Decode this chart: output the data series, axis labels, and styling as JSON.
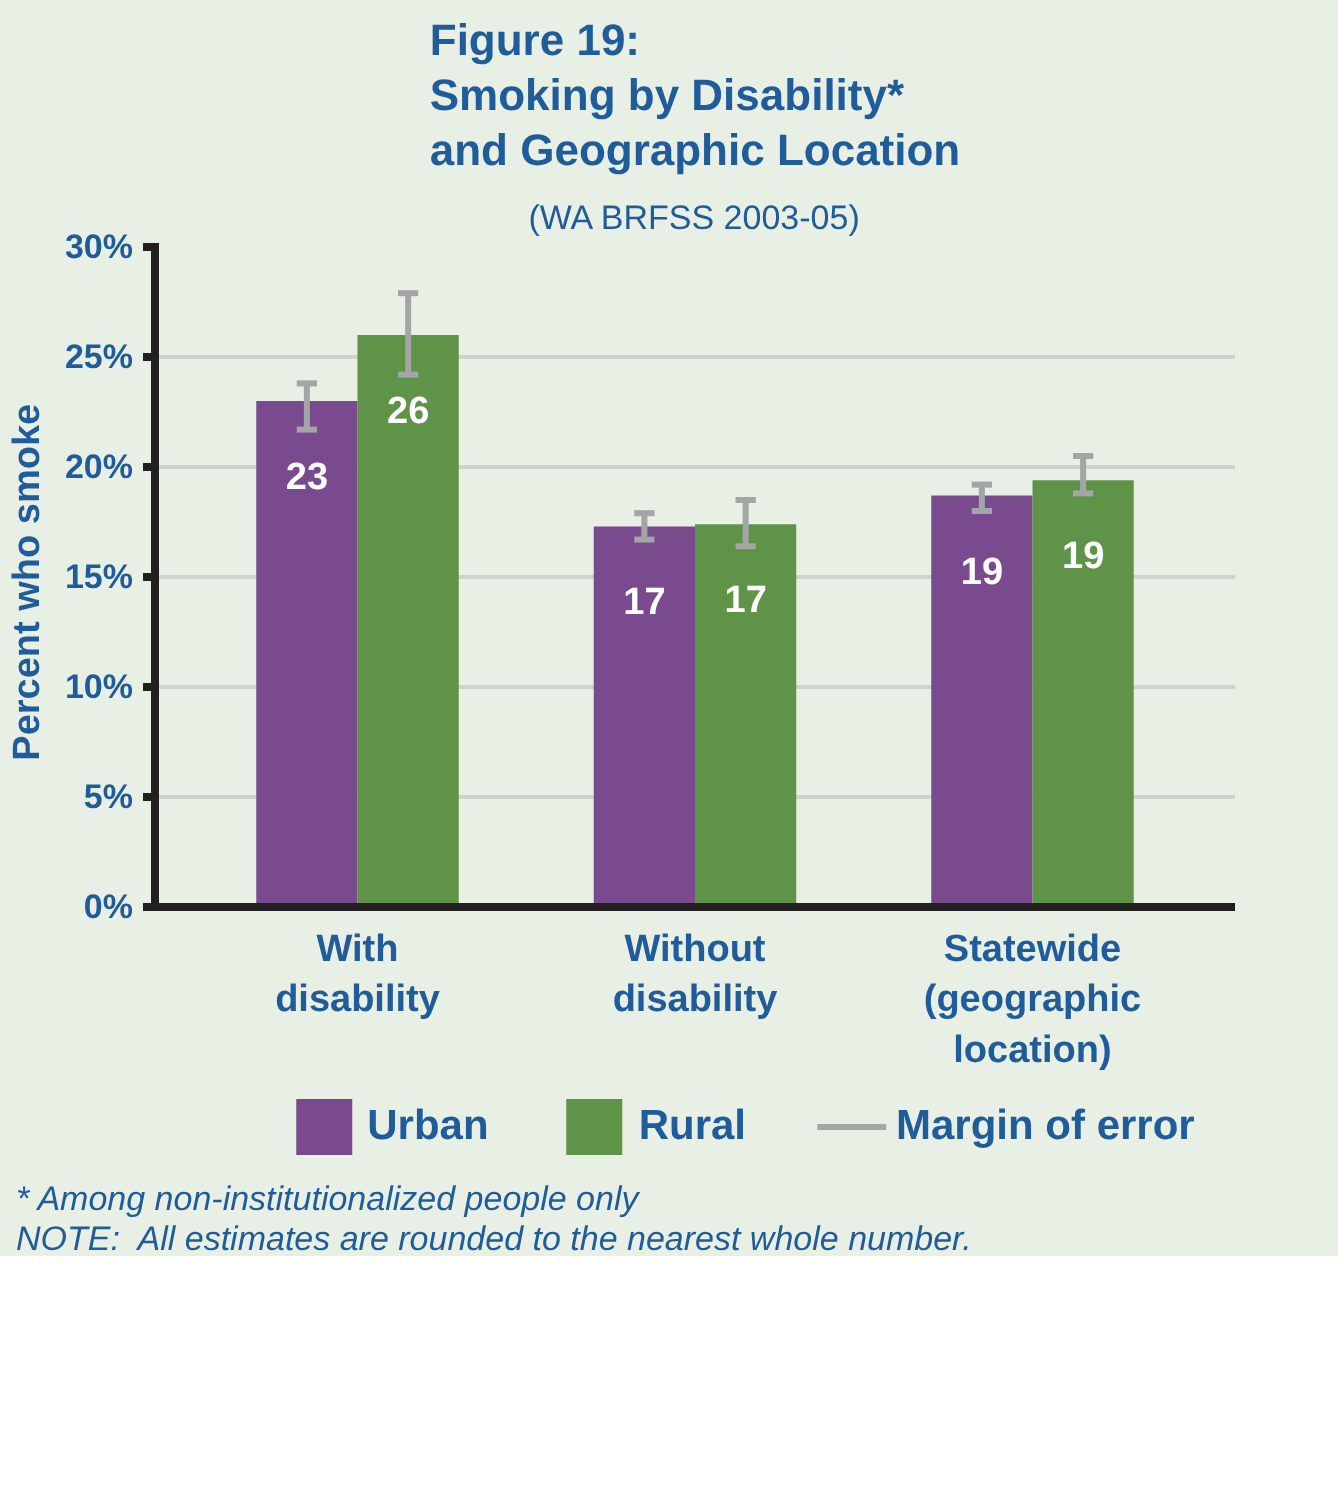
{
  "chart_data": {
    "type": "bar",
    "title": "Figure 19:\nSmoking by Disability*\nand Geographic Location",
    "subtitle": "(WA BRFSS 2003-05)",
    "ylabel": "Percent  who smoke",
    "categories": [
      "With\ndisability",
      "Without\ndisability",
      "Statewide\n(geographic\nlocation)"
    ],
    "series": [
      {
        "name": "Urban",
        "color": "#7a4a8e",
        "values": [
          23.0,
          17.3,
          18.7
        ],
        "errors": [
          [
            21.7,
            23.8
          ],
          [
            16.7,
            17.9
          ],
          [
            18.0,
            19.2
          ]
        ],
        "value_labels": [
          "23",
          "17",
          "19"
        ]
      },
      {
        "name": "Rural",
        "color": "#5f9448",
        "values": [
          26.0,
          17.4,
          19.4
        ],
        "errors": [
          [
            24.2,
            27.9
          ],
          [
            16.4,
            18.5
          ],
          [
            18.8,
            20.5
          ]
        ],
        "value_labels": [
          "26",
          "17",
          "19"
        ]
      }
    ],
    "ylim": [
      0,
      30
    ],
    "yticks": [
      {
        "value": 0,
        "label": "0%"
      },
      {
        "value": 5,
        "label": "5%"
      },
      {
        "value": 10,
        "label": "10%"
      },
      {
        "value": 15,
        "label": "15%"
      },
      {
        "value": 20,
        "label": "20%"
      },
      {
        "value": 25,
        "label": "25%"
      },
      {
        "value": 30,
        "label": "30%"
      }
    ],
    "grid": "y",
    "legend": "bottom",
    "annotations": [
      "Margin of error",
      "* Among non-institutionalized people only",
      "NOTE:  All estimates are rounded to the nearest whole number."
    ]
  }
}
